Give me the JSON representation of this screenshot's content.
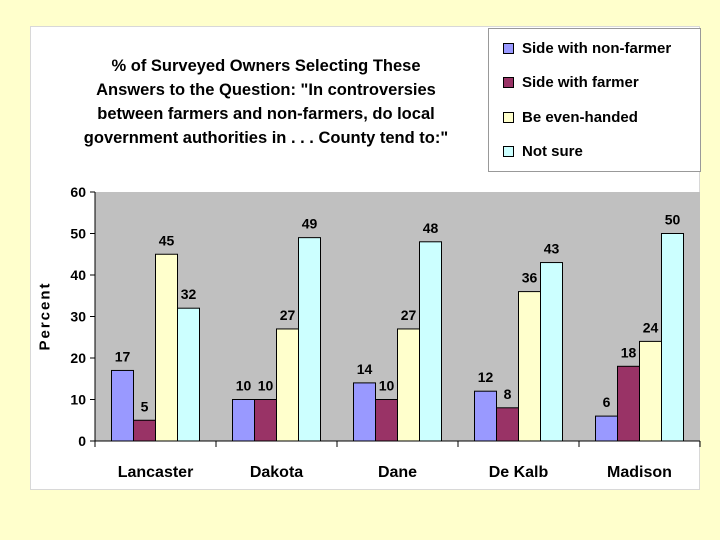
{
  "colors": {
    "page_background": "#ffffcc",
    "plot_background": "#c0c0c0",
    "series": [
      "#9999ff",
      "#993366",
      "#ffffcc",
      "#ccffff"
    ]
  },
  "chart_data": {
    "type": "bar",
    "title_lines": [
      "% of Surveyed Owners Selecting These",
      "Answers to the Question:  \"In controversies",
      "between farmers and non-farmers, do local",
      "government authorities in . . . County tend to:\""
    ],
    "ylabel": "Percent",
    "xlabel": "",
    "ylim": [
      0,
      60
    ],
    "yticks": [
      0,
      10,
      20,
      30,
      40,
      50,
      60
    ],
    "categories": [
      "Lancaster",
      "Dakota",
      "Dane",
      "De Kalb",
      "Madison"
    ],
    "series": [
      {
        "name": "Side with non-farmer",
        "values": [
          17,
          10,
          14,
          12,
          6
        ]
      },
      {
        "name": "Side with farmer",
        "values": [
          5,
          10,
          10,
          8,
          18
        ]
      },
      {
        "name": "Be even-handed",
        "values": [
          45,
          27,
          27,
          36,
          24
        ]
      },
      {
        "name": "Not sure",
        "values": [
          32,
          49,
          48,
          43,
          50
        ]
      }
    ],
    "legend_position": "top-right",
    "grid": false
  }
}
